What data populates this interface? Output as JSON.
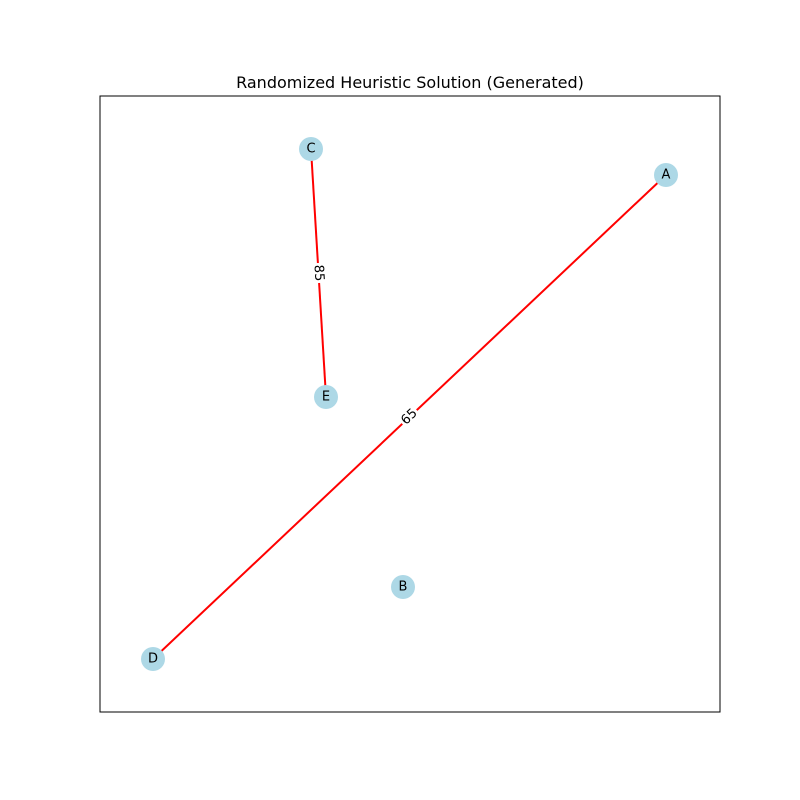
{
  "figure": {
    "title": "Randomized Heuristic Solution (Generated)"
  },
  "colors": {
    "node_fill": "#add8e6",
    "edge_stroke": "#ff0000",
    "frame_stroke": "#000000",
    "background": "#ffffff",
    "edge_label_background": "#ffffff"
  },
  "nodes": [
    {
      "id": "A",
      "label": "A"
    },
    {
      "id": "B",
      "label": "B"
    },
    {
      "id": "C",
      "label": "C"
    },
    {
      "id": "D",
      "label": "D"
    },
    {
      "id": "E",
      "label": "E"
    }
  ],
  "edges": [
    {
      "source": "C",
      "target": "E",
      "weight_label": "85"
    },
    {
      "source": "A",
      "target": "D",
      "weight_label": "65"
    }
  ]
}
